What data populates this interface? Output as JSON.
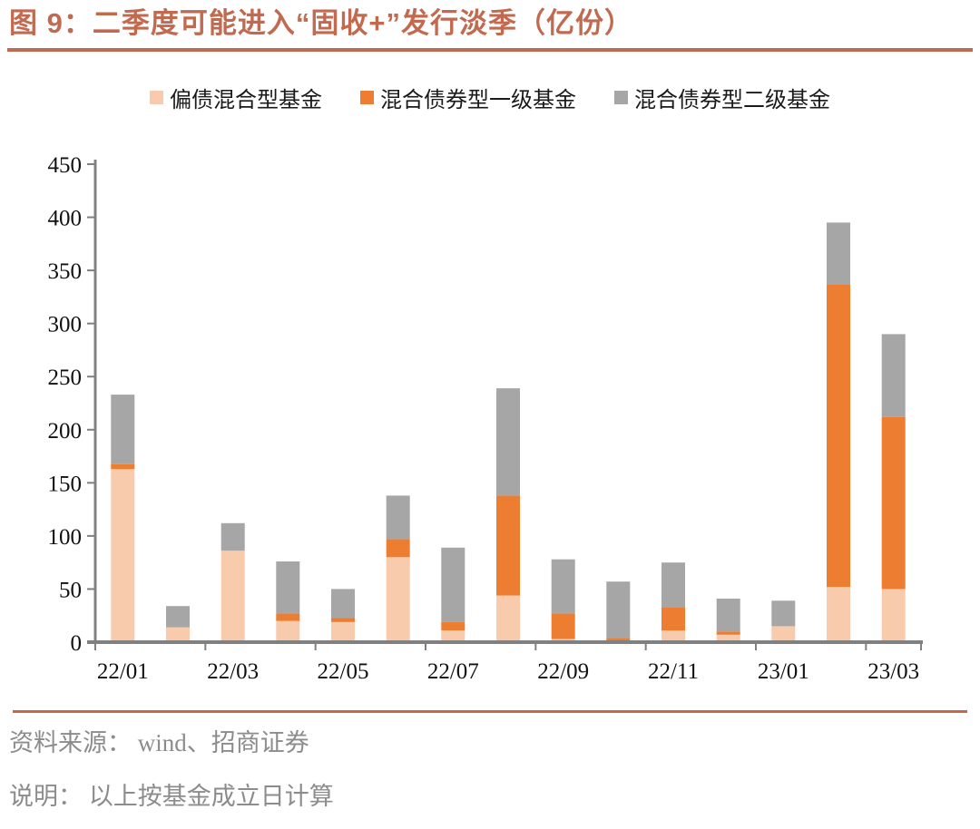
{
  "title": {
    "text": "图 9：二季度可能进入“固收+”发行淡季（亿份）"
  },
  "footer": {
    "source": "资料来源： wind、招商证券",
    "note": "说明： 以上按基金成立日计算"
  },
  "colors": {
    "accent_title_rule": "#C26A50",
    "axis": "#808080",
    "tick_label": "#111111",
    "footer_text": "#8C8C8C",
    "series_peach": "#F8CBAD",
    "series_orange": "#ED7D31",
    "series_gray": "#A6A6A6"
  },
  "chart_data": {
    "type": "bar",
    "stacked": true,
    "title": "二季度可能进入“固收+”发行淡季（亿份）",
    "xlabel": "",
    "ylabel": "",
    "ylim": [
      0,
      450
    ],
    "y_ticks": [
      0,
      50,
      100,
      150,
      200,
      250,
      300,
      350,
      400,
      450
    ],
    "grid": false,
    "legend_position": "top",
    "categories": [
      "22/01",
      "22/02",
      "22/03",
      "22/04",
      "22/05",
      "22/06",
      "22/07",
      "22/08",
      "22/09",
      "22/10",
      "22/11",
      "22/12",
      "23/01",
      "23/02",
      "23/03"
    ],
    "x_tick_labels": [
      {
        "index": 0,
        "label": "22/01"
      },
      {
        "index": 2,
        "label": "22/03"
      },
      {
        "index": 4,
        "label": "22/05"
      },
      {
        "index": 6,
        "label": "22/07"
      },
      {
        "index": 8,
        "label": "22/09"
      },
      {
        "index": 10,
        "label": "22/11"
      },
      {
        "index": 12,
        "label": "23/01"
      },
      {
        "index": 14,
        "label": "23/03"
      }
    ],
    "series": [
      {
        "name": "偏债混合型基金",
        "color": "#F8CBAD",
        "values": [
          163,
          14,
          86,
          20,
          19,
          80,
          11,
          44,
          3,
          1,
          11,
          7,
          15,
          52,
          50
        ]
      },
      {
        "name": "混合债券型一级基金",
        "color": "#ED7D31",
        "values": [
          5,
          0,
          0,
          7,
          4,
          17,
          8,
          94,
          24,
          3,
          22,
          3,
          0,
          285,
          162
        ]
      },
      {
        "name": "混合债券型二级基金",
        "color": "#A6A6A6",
        "values": [
          65,
          20,
          26,
          49,
          27,
          41,
          70,
          101,
          51,
          53,
          42,
          31,
          24,
          58,
          78
        ]
      }
    ],
    "stack_totals": [
      233,
      34,
      112,
      76,
      50,
      138,
      89,
      239,
      78,
      57,
      75,
      41,
      39,
      395,
      290
    ]
  }
}
